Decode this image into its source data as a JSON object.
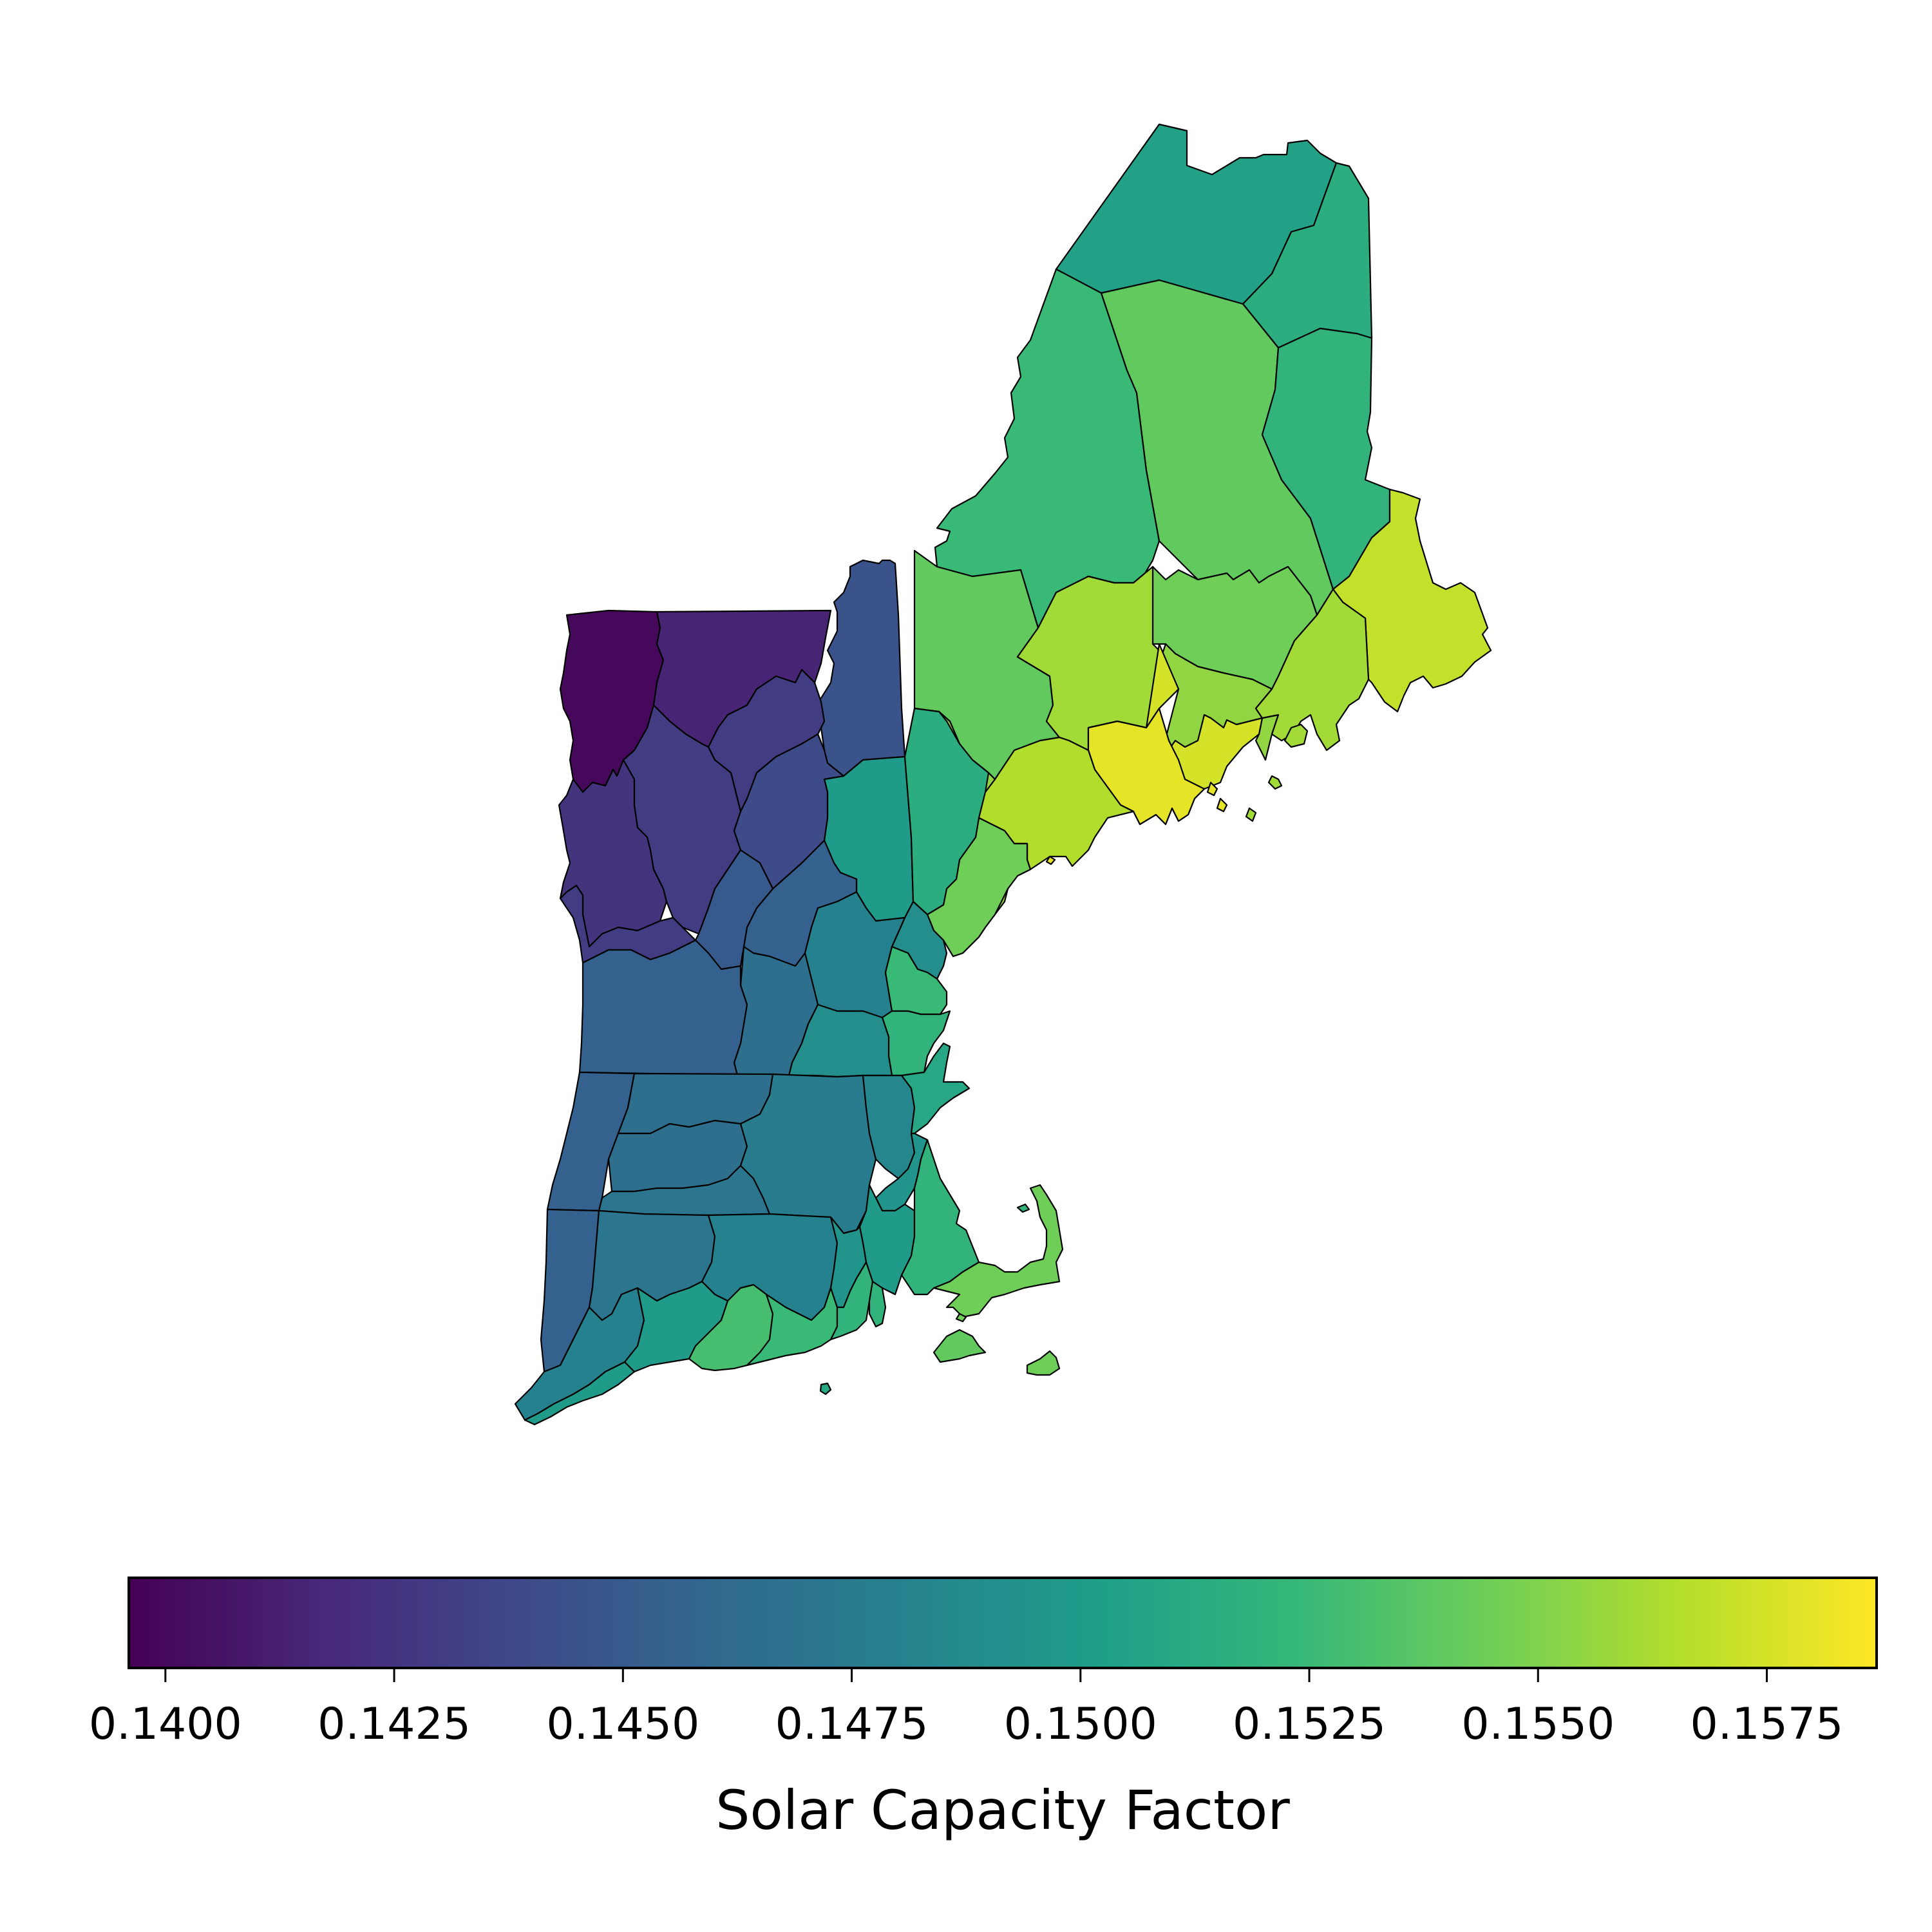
{
  "map": {
    "colormap": "viridis",
    "regions": [
      {
        "name": "maine-aroostook-north",
        "value": 0.1505
      },
      {
        "name": "maine-aroostook-east",
        "value": 0.1515
      },
      {
        "name": "maine-piscataquis",
        "value": 0.1525
      },
      {
        "name": "maine-penobscot",
        "value": 0.154
      },
      {
        "name": "maine-washington-west",
        "value": 0.152
      },
      {
        "name": "maine-washington",
        "value": 0.157
      },
      {
        "name": "maine-somerset-south",
        "value": 0.1545
      },
      {
        "name": "maine-oxford",
        "value": 0.154
      },
      {
        "name": "maine-kennebec",
        "value": 0.156
      },
      {
        "name": "maine-waldo",
        "value": 0.1555
      },
      {
        "name": "maine-hancock",
        "value": 0.156
      },
      {
        "name": "maine-lincoln",
        "value": 0.1575
      },
      {
        "name": "maine-knox",
        "value": 0.158
      },
      {
        "name": "maine-cumberland",
        "value": 0.1565
      },
      {
        "name": "maine-york",
        "value": 0.1555
      },
      {
        "name": "maine-androscoggin",
        "value": 0.1545
      },
      {
        "name": "nh-coos",
        "value": 0.1445
      },
      {
        "name": "nh-grafton",
        "value": 0.15
      },
      {
        "name": "nh-carroll",
        "value": 0.1515
      },
      {
        "name": "nh-belknap",
        "value": 0.149
      },
      {
        "name": "nh-sullivan",
        "value": 0.1455
      },
      {
        "name": "nh-merrimack",
        "value": 0.148
      },
      {
        "name": "nh-strafford",
        "value": 0.1525
      },
      {
        "name": "nh-rockingham",
        "value": 0.152
      },
      {
        "name": "nh-cheshire",
        "value": 0.1465
      },
      {
        "name": "nh-hillsborough",
        "value": 0.149
      },
      {
        "name": "vt-grand-isle-franklin",
        "value": 0.14
      },
      {
        "name": "vt-orleans",
        "value": 0.1415
      },
      {
        "name": "vt-caledonia",
        "value": 0.143
      },
      {
        "name": "vt-chittenden-addison",
        "value": 0.1425
      },
      {
        "name": "vt-washington",
        "value": 0.143
      },
      {
        "name": "vt-orange",
        "value": 0.144
      },
      {
        "name": "vt-windsor",
        "value": 0.145
      },
      {
        "name": "vt-rutland",
        "value": 0.143
      },
      {
        "name": "vt-bennington-windham",
        "value": 0.1455
      },
      {
        "name": "ma-berkshire",
        "value": 0.1455
      },
      {
        "name": "ma-franklin",
        "value": 0.1465
      },
      {
        "name": "ma-hampshire",
        "value": 0.1465
      },
      {
        "name": "ma-hampden",
        "value": 0.147
      },
      {
        "name": "ma-worcester",
        "value": 0.1475
      },
      {
        "name": "ma-middlesex",
        "value": 0.1485
      },
      {
        "name": "ma-essex",
        "value": 0.151
      },
      {
        "name": "ma-norfolk",
        "value": 0.1495
      },
      {
        "name": "ma-bristol",
        "value": 0.15
      },
      {
        "name": "ma-plymouth",
        "value": 0.152
      },
      {
        "name": "ma-barnstable",
        "value": 0.1545
      },
      {
        "name": "ma-marthas-vineyard",
        "value": 0.154
      },
      {
        "name": "ma-nantucket",
        "value": 0.1545
      },
      {
        "name": "ct-litchfield",
        "value": 0.1455
      },
      {
        "name": "ct-hartford",
        "value": 0.147
      },
      {
        "name": "ct-tolland-windham",
        "value": 0.148
      },
      {
        "name": "ct-fairfield",
        "value": 0.148
      },
      {
        "name": "ct-new-haven",
        "value": 0.15
      },
      {
        "name": "ct-middlesex",
        "value": 0.153
      },
      {
        "name": "ct-new-london",
        "value": 0.1525
      },
      {
        "name": "ri-providence-kent",
        "value": 0.1495
      },
      {
        "name": "ri-washington",
        "value": 0.152
      },
      {
        "name": "ri-block-island",
        "value": 0.151
      }
    ]
  },
  "colorbar": {
    "label": "Solar Capacity Factor",
    "min": 0.1396,
    "max": 0.1587,
    "ticks": [
      "0.1400",
      "0.1425",
      "0.1450",
      "0.1475",
      "0.1500",
      "0.1525",
      "0.1550",
      "0.1575"
    ],
    "tick_values": [
      0.14,
      0.1425,
      0.145,
      0.1475,
      0.15,
      0.1525,
      0.155,
      0.1575
    ],
    "colors": [
      "#440154",
      "#482878",
      "#3e4989",
      "#31688e",
      "#26828e",
      "#1f9e89",
      "#35b779",
      "#6ece58",
      "#b5de2b",
      "#fde725"
    ]
  }
}
